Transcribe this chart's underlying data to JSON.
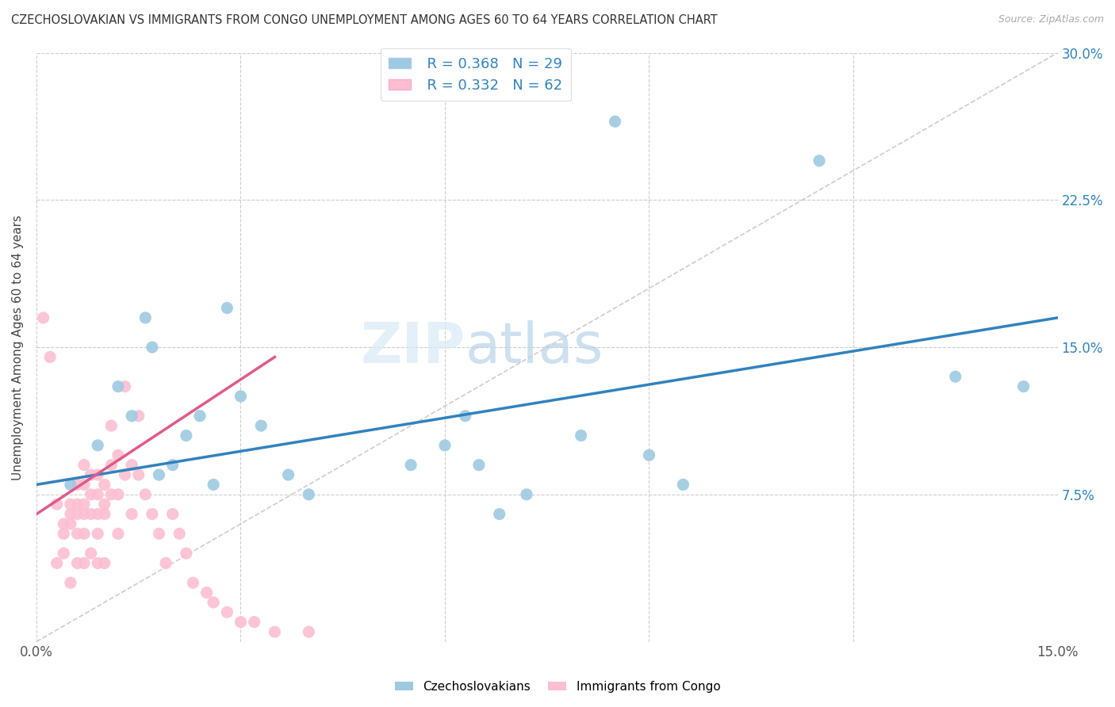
{
  "title": "CZECHOSLOVAKIAN VS IMMIGRANTS FROM CONGO UNEMPLOYMENT AMONG AGES 60 TO 64 YEARS CORRELATION CHART",
  "source": "Source: ZipAtlas.com",
  "ylabel": "Unemployment Among Ages 60 to 64 years",
  "xlim": [
    0.0,
    0.15
  ],
  "ylim": [
    0.0,
    0.3
  ],
  "xticks": [
    0.0,
    0.03,
    0.06,
    0.09,
    0.12,
    0.15
  ],
  "yticks": [
    0.0,
    0.075,
    0.15,
    0.225,
    0.3
  ],
  "xticklabels": [
    "0.0%",
    "",
    "",
    "",
    "",
    "15.0%"
  ],
  "yticklabels_right": [
    "",
    "7.5%",
    "15.0%",
    "22.5%",
    "30.0%"
  ],
  "legend_r1": "R = 0.368",
  "legend_n1": "N = 29",
  "legend_r2": "R = 0.332",
  "legend_n2": "N = 62",
  "blue_color": "#9ecae1",
  "pink_color": "#fcbfd2",
  "line_blue": "#3182bd",
  "line_pink": "#e05a8a",
  "diagonal_color": "#ccbbbb",
  "watermark_zip": "ZIP",
  "watermark_atlas": "atlas",
  "blue_scatter_x": [
    0.005,
    0.009,
    0.012,
    0.014,
    0.016,
    0.017,
    0.018,
    0.02,
    0.022,
    0.024,
    0.026,
    0.028,
    0.03,
    0.033,
    0.037,
    0.04,
    0.055,
    0.06,
    0.063,
    0.065,
    0.068,
    0.072,
    0.08,
    0.085,
    0.09,
    0.095,
    0.115,
    0.135,
    0.145
  ],
  "blue_scatter_y": [
    0.08,
    0.1,
    0.13,
    0.115,
    0.165,
    0.15,
    0.085,
    0.09,
    0.105,
    0.115,
    0.08,
    0.17,
    0.125,
    0.11,
    0.085,
    0.075,
    0.09,
    0.1,
    0.115,
    0.09,
    0.065,
    0.075,
    0.105,
    0.265,
    0.095,
    0.08,
    0.245,
    0.135,
    0.13
  ],
  "pink_scatter_x": [
    0.001,
    0.002,
    0.003,
    0.003,
    0.004,
    0.004,
    0.004,
    0.005,
    0.005,
    0.005,
    0.005,
    0.006,
    0.006,
    0.006,
    0.006,
    0.006,
    0.007,
    0.007,
    0.007,
    0.007,
    0.007,
    0.007,
    0.008,
    0.008,
    0.008,
    0.008,
    0.009,
    0.009,
    0.009,
    0.009,
    0.009,
    0.01,
    0.01,
    0.01,
    0.01,
    0.011,
    0.011,
    0.011,
    0.012,
    0.012,
    0.012,
    0.013,
    0.013,
    0.014,
    0.014,
    0.015,
    0.015,
    0.016,
    0.017,
    0.018,
    0.019,
    0.02,
    0.021,
    0.022,
    0.023,
    0.025,
    0.026,
    0.028,
    0.03,
    0.032,
    0.035,
    0.04
  ],
  "pink_scatter_y": [
    0.165,
    0.145,
    0.04,
    0.07,
    0.06,
    0.055,
    0.045,
    0.07,
    0.065,
    0.06,
    0.03,
    0.08,
    0.07,
    0.065,
    0.055,
    0.04,
    0.09,
    0.08,
    0.07,
    0.065,
    0.055,
    0.04,
    0.085,
    0.075,
    0.065,
    0.045,
    0.085,
    0.075,
    0.065,
    0.055,
    0.04,
    0.08,
    0.07,
    0.065,
    0.04,
    0.11,
    0.09,
    0.075,
    0.095,
    0.075,
    0.055,
    0.13,
    0.085,
    0.09,
    0.065,
    0.115,
    0.085,
    0.075,
    0.065,
    0.055,
    0.04,
    0.065,
    0.055,
    0.045,
    0.03,
    0.025,
    0.02,
    0.015,
    0.01,
    0.01,
    0.005,
    0.005
  ],
  "blue_line_x": [
    0.0,
    0.15
  ],
  "blue_line_y": [
    0.08,
    0.165
  ],
  "pink_line_x": [
    0.0,
    0.035
  ],
  "pink_line_y": [
    0.065,
    0.145
  ]
}
